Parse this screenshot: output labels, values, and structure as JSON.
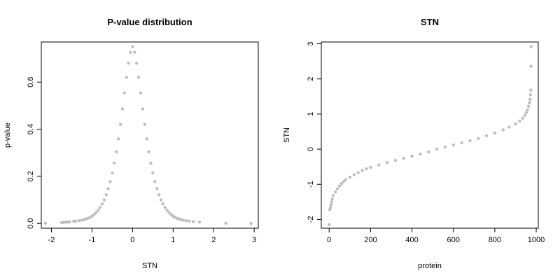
{
  "chart_data": [
    {
      "type": "scatter",
      "title": "P-value distribution",
      "xlabel": "STN",
      "ylabel": "p-value",
      "xlim": [
        -2.25,
        3.1
      ],
      "ylim": [
        -0.02,
        0.77
      ],
      "xticks": [
        -2,
        -1,
        0,
        1,
        2,
        3
      ],
      "yticks": [
        0.0,
        0.2,
        0.4,
        0.6
      ],
      "ytick_labels": [
        "0.0",
        "0.2",
        "0.4",
        "0.6"
      ],
      "grid": false,
      "point_color": "#bebebe",
      "series": [
        {
          "points": [
            [
              -2.15,
              0.001
            ],
            [
              -1.75,
              0.004
            ],
            [
              -1.7,
              0.005
            ],
            [
              -1.65,
              0.006
            ],
            [
              -1.6,
              0.006
            ],
            [
              -1.55,
              0.007
            ],
            [
              -1.45,
              0.009
            ],
            [
              -1.4,
              0.01
            ],
            [
              -1.32,
              0.012
            ],
            [
              -1.25,
              0.014
            ],
            [
              -1.2,
              0.016
            ],
            [
              -1.15,
              0.019
            ],
            [
              -1.1,
              0.022
            ],
            [
              -1.05,
              0.026
            ],
            [
              -1.0,
              0.031
            ],
            [
              -0.95,
              0.038
            ],
            [
              -0.9,
              0.046
            ],
            [
              -0.85,
              0.056
            ],
            [
              -0.8,
              0.068
            ],
            [
              -0.75,
              0.083
            ],
            [
              -0.7,
              0.1
            ],
            [
              -0.65,
              0.122
            ],
            [
              -0.6,
              0.148
            ],
            [
              -0.55,
              0.178
            ],
            [
              -0.5,
              0.214
            ],
            [
              -0.45,
              0.256
            ],
            [
              -0.4,
              0.304
            ],
            [
              -0.35,
              0.359
            ],
            [
              -0.3,
              0.42
            ],
            [
              -0.25,
              0.486
            ],
            [
              -0.2,
              0.554
            ],
            [
              -0.15,
              0.62
            ],
            [
              -0.1,
              0.68
            ],
            [
              -0.05,
              0.726
            ],
            [
              0.0,
              0.75
            ],
            [
              0.05,
              0.726
            ],
            [
              0.1,
              0.68
            ],
            [
              0.15,
              0.62
            ],
            [
              0.2,
              0.554
            ],
            [
              0.25,
              0.486
            ],
            [
              0.3,
              0.42
            ],
            [
              0.35,
              0.359
            ],
            [
              0.4,
              0.304
            ],
            [
              0.45,
              0.256
            ],
            [
              0.5,
              0.214
            ],
            [
              0.55,
              0.178
            ],
            [
              0.6,
              0.148
            ],
            [
              0.65,
              0.122
            ],
            [
              0.7,
              0.1
            ],
            [
              0.75,
              0.083
            ],
            [
              0.8,
              0.068
            ],
            [
              0.85,
              0.056
            ],
            [
              0.9,
              0.046
            ],
            [
              0.95,
              0.038
            ],
            [
              1.0,
              0.031
            ],
            [
              1.05,
              0.026
            ],
            [
              1.1,
              0.022
            ],
            [
              1.15,
              0.019
            ],
            [
              1.2,
              0.016
            ],
            [
              1.25,
              0.014
            ],
            [
              1.32,
              0.012
            ],
            [
              1.4,
              0.01
            ],
            [
              1.5,
              0.008
            ],
            [
              1.65,
              0.006
            ],
            [
              2.3,
              0.001
            ],
            [
              2.92,
              0.0
            ]
          ]
        }
      ]
    },
    {
      "type": "scatter",
      "title": "STN",
      "xlabel": "protein",
      "ylabel": "STN",
      "xlim": [
        -38,
        1010
      ],
      "ylim": [
        -2.25,
        3.05
      ],
      "xticks": [
        0,
        200,
        400,
        600,
        800,
        1000
      ],
      "yticks": [
        -2,
        -1,
        0,
        1,
        2,
        3
      ],
      "grid": false,
      "point_color": "#bebebe",
      "series": [
        {
          "points": [
            [
              0,
              -2.15
            ],
            [
              3,
              -1.72
            ],
            [
              6,
              -1.66
            ],
            [
              9,
              -1.58
            ],
            [
              12,
              -1.5
            ],
            [
              15,
              -1.42
            ],
            [
              20,
              -1.32
            ],
            [
              30,
              -1.22
            ],
            [
              40,
              -1.13
            ],
            [
              50,
              -1.05
            ],
            [
              60,
              -0.98
            ],
            [
              70,
              -0.92
            ],
            [
              80,
              -0.87
            ],
            [
              100,
              -0.8
            ],
            [
              120,
              -0.73
            ],
            [
              140,
              -0.67
            ],
            [
              160,
              -0.61
            ],
            [
              180,
              -0.56
            ],
            [
              200,
              -0.52
            ],
            [
              240,
              -0.45
            ],
            [
              280,
              -0.38
            ],
            [
              320,
              -0.32
            ],
            [
              360,
              -0.26
            ],
            [
              400,
              -0.2
            ],
            [
              440,
              -0.14
            ],
            [
              480,
              -0.08
            ],
            [
              520,
              0.0
            ],
            [
              560,
              0.06
            ],
            [
              600,
              0.12
            ],
            [
              640,
              0.18
            ],
            [
              680,
              0.24
            ],
            [
              720,
              0.3
            ],
            [
              760,
              0.38
            ],
            [
              800,
              0.46
            ],
            [
              840,
              0.55
            ],
            [
              870,
              0.63
            ],
            [
              900,
              0.72
            ],
            [
              920,
              0.8
            ],
            [
              935,
              0.88
            ],
            [
              945,
              0.96
            ],
            [
              952,
              1.04
            ],
            [
              958,
              1.12
            ],
            [
              963,
              1.22
            ],
            [
              967,
              1.32
            ],
            [
              970,
              1.42
            ],
            [
              972,
              1.55
            ],
            [
              974,
              1.68
            ],
            [
              975,
              2.36
            ],
            [
              976,
              2.92
            ]
          ]
        }
      ]
    }
  ]
}
